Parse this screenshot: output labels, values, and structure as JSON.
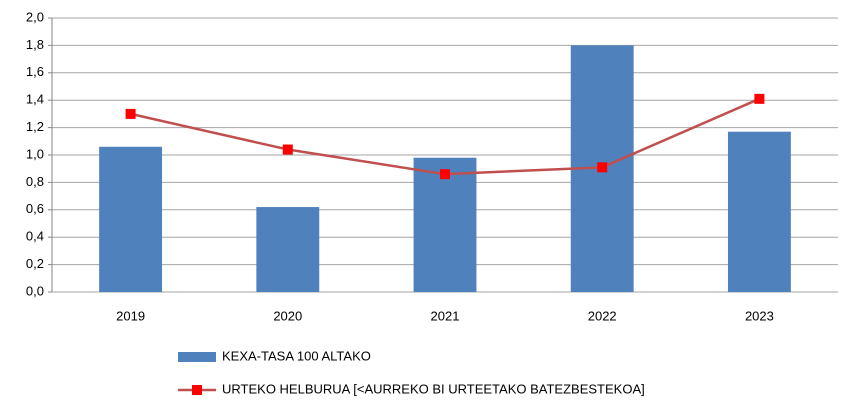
{
  "chart_data": {
    "type": "bar",
    "categories": [
      "2019",
      "2020",
      "2021",
      "2022",
      "2023"
    ],
    "series": [
      {
        "name": "KEXA-TASA  100 ALTAKO",
        "type": "bar",
        "color": "#4f81bd",
        "values": [
          1.06,
          0.62,
          0.98,
          1.8,
          1.17
        ]
      },
      {
        "name": "URTEKO HELBURUA [<AURREKO BI URTEETAKO BATEZBESTEKOA]",
        "type": "line",
        "color": "#c0504d",
        "marker_color": "#ff0000",
        "values": [
          1.3,
          1.04,
          0.86,
          0.91,
          1.41
        ]
      }
    ],
    "ylim": [
      0,
      2.0
    ],
    "yticks": [
      {
        "value": 0,
        "label": "0,0"
      },
      {
        "value": 0.2,
        "label": "0,2"
      },
      {
        "value": 0.4,
        "label": "0,4"
      },
      {
        "value": 0.6,
        "label": "0,6"
      },
      {
        "value": 0.8,
        "label": "0,8"
      },
      {
        "value": 1.0,
        "label": "1,0"
      },
      {
        "value": 1.2,
        "label": "1,2"
      },
      {
        "value": 1.4,
        "label": "1,4"
      },
      {
        "value": 1.6,
        "label": "1,6"
      },
      {
        "value": 1.8,
        "label": "1,8"
      },
      {
        "value": 2.0,
        "label": "2,0"
      }
    ],
    "grid": true,
    "legend": "bottom"
  }
}
